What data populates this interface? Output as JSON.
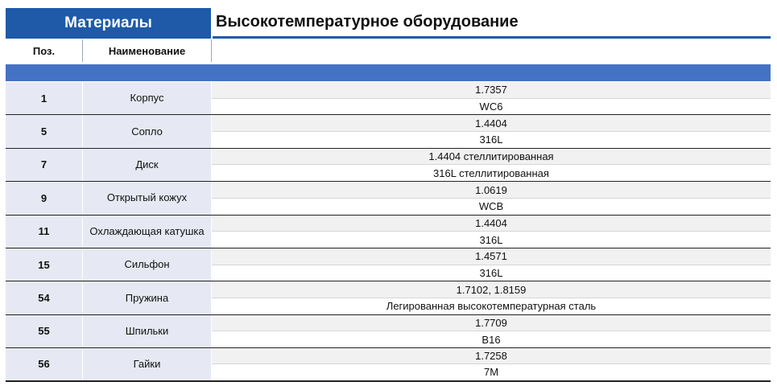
{
  "header": {
    "left_title": "Материалы",
    "right_title": "Высокотемпературное оборудование"
  },
  "columns": {
    "pos": "Поз.",
    "name": "Наименование",
    "material": ""
  },
  "rows": [
    {
      "pos": "1",
      "name": "Корпус",
      "mat1": "1.7357",
      "mat2": "WC6"
    },
    {
      "pos": "5",
      "name": "Сопло",
      "mat1": "1.4404",
      "mat2": "316L"
    },
    {
      "pos": "7",
      "name": "Диск",
      "mat1": "1.4404 стеллитированная",
      "mat2": "316L стеллитированная"
    },
    {
      "pos": "9",
      "name": "Открытый кожух",
      "mat1": "1.0619",
      "mat2": "WCB"
    },
    {
      "pos": "11",
      "name": "Охлаждающая катушка",
      "mat1": "1.4404",
      "mat2": "316L"
    },
    {
      "pos": "15",
      "name": "Сильфон",
      "mat1": "1.4571",
      "mat2": "316L"
    },
    {
      "pos": "54",
      "name": "Пружина",
      "mat1": "1.7102, 1.8159",
      "mat2": "Легированная высокотемпературная сталь"
    },
    {
      "pos": "55",
      "name": "Шпильки",
      "mat1": "1.7709",
      "mat2": "B16"
    },
    {
      "pos": "56",
      "name": "Гайки",
      "mat1": "1.7258",
      "mat2": "7M"
    }
  ],
  "colors": {
    "header_blue": "#1e5aa8",
    "band_blue": "#4472c4",
    "cell_shade": "#e6e9f3"
  }
}
